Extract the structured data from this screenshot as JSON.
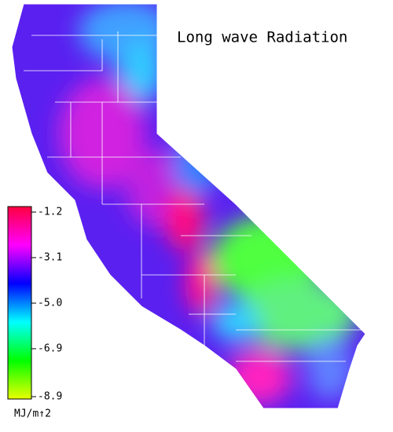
{
  "map": {
    "title": "Long wave Radiation",
    "legend": {
      "ticks": [
        -1.2,
        -3.1,
        {
          "value": -5,
          "label": "-5.0"
        },
        -6.9,
        -8.9
      ],
      "range": [
        -8.9,
        -1.2
      ],
      "unit": "MJ/m↑2",
      "colors": [
        "#e8ff00",
        "#00ff00",
        "#00ffff",
        "#0000ff",
        "#ff00ff",
        "#ff0040"
      ]
    }
  }
}
